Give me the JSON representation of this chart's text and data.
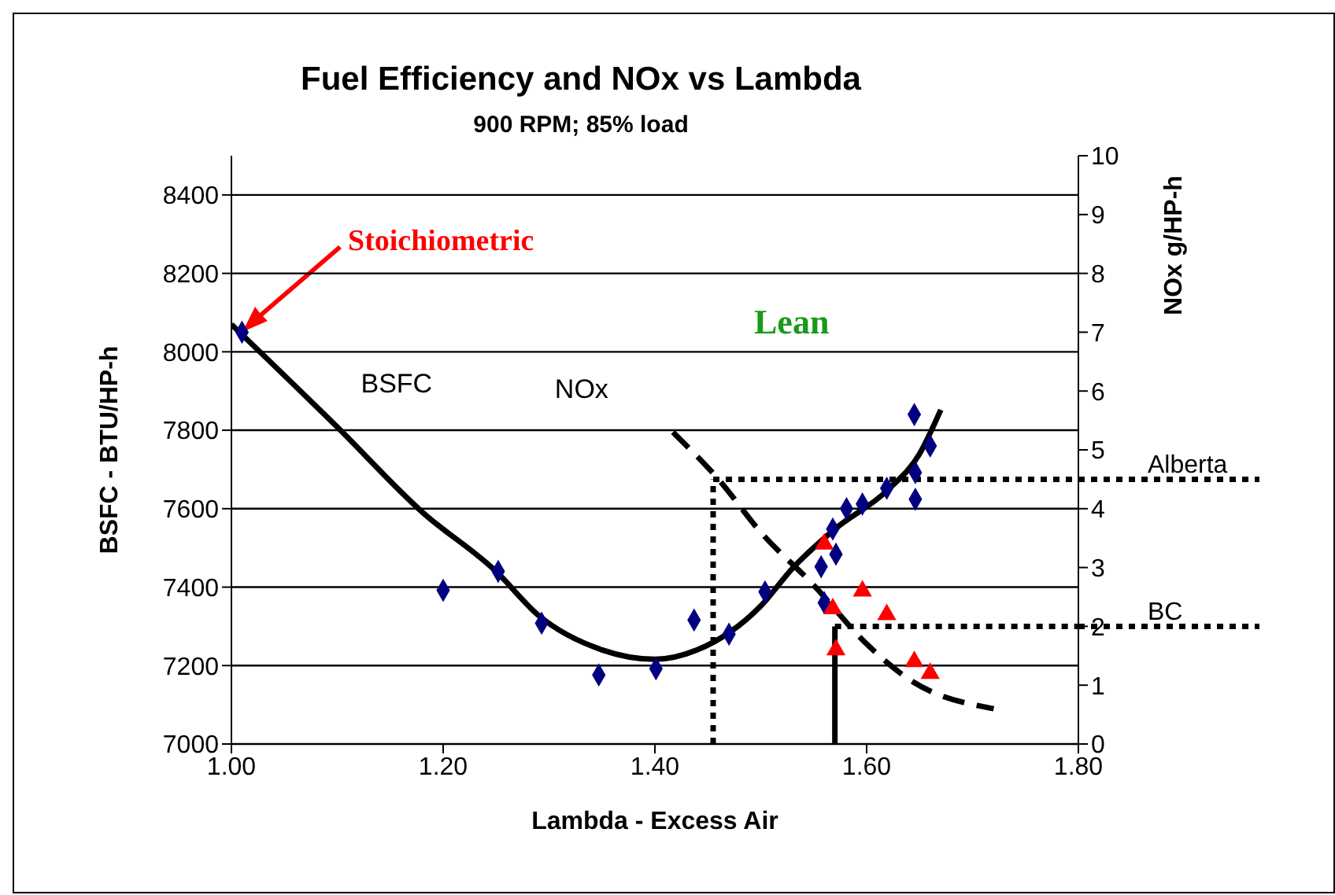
{
  "chart_data": {
    "type": "scatter",
    "title": "Fuel Efficiency and NOx vs Lambda",
    "subtitle": "900 RPM; 85% load",
    "xlabel": "Lambda - Excess Air",
    "ylabel": "BSFC - BTU/HP-h",
    "y2label": "NOx g/HP-h",
    "xlim": [
      1.0,
      1.8
    ],
    "xticks": [
      {
        "value": 1.0,
        "label": "1.00"
      },
      {
        "value": 1.2,
        "label": "1.20"
      },
      {
        "value": 1.4,
        "label": "1.40"
      },
      {
        "value": 1.6,
        "label": "1.60"
      },
      {
        "value": 1.8,
        "label": "1.80"
      }
    ],
    "ylim": [
      7000,
      8500
    ],
    "yticks": [
      7000,
      7200,
      7400,
      7600,
      7800,
      8000,
      8200,
      8400
    ],
    "y2lim": [
      0,
      10
    ],
    "y2ticks": [
      0,
      1,
      2,
      3,
      4,
      5,
      6,
      7,
      8,
      9,
      10
    ],
    "grid": "y",
    "legend": false,
    "series": [
      {
        "type": "scatter",
        "marker": "diamond",
        "color": "#000080",
        "x": [
          1.01,
          1.2,
          1.252,
          1.293,
          1.347,
          1.401,
          1.437,
          1.47,
          1.504,
          1.557,
          1.56,
          1.571,
          1.568,
          1.581,
          1.596,
          1.619,
          1.645,
          1.66,
          1.646,
          1.646
        ],
        "values": [
          8050,
          7392,
          7440,
          7308,
          7176,
          7192,
          7316,
          7280,
          7388,
          7452,
          7360,
          7484,
          7548,
          7600,
          7612,
          7652,
          7840,
          7760,
          7692,
          7624
        ]
      },
      {
        "type": "scatter",
        "marker": "triangle",
        "color": "#ff0000",
        "axis": "y2",
        "x": [
          1.56,
          1.568,
          1.571,
          1.596,
          1.619,
          1.645,
          1.66
        ],
        "values": [
          3.4,
          2.3,
          1.6,
          2.6,
          2.2,
          1.4,
          1.2
        ]
      },
      {
        "type": "line",
        "name": "BSFC",
        "color": "#000000",
        "line_style": "solid",
        "x": [
          1.0,
          1.1,
          1.18,
          1.25,
          1.29,
          1.35,
          1.4,
          1.44,
          1.5,
          1.53,
          1.57,
          1.62,
          1.65,
          1.67
        ],
        "values": [
          8070,
          7808,
          7592,
          7440,
          7328,
          7240,
          7216,
          7240,
          7352,
          7448,
          7548,
          7648,
          7740,
          7852
        ]
      },
      {
        "type": "line",
        "name": "NOx",
        "color": "#000000",
        "line_style": "dashed",
        "axis": "y2",
        "x": [
          1.417,
          1.46,
          1.5,
          1.55,
          1.6,
          1.64,
          1.72
        ],
        "values": [
          5.3,
          4.5,
          3.6,
          2.7,
          1.7,
          1.1,
          0.6
        ]
      }
    ],
    "ref_lines": [
      {
        "axis": "x",
        "value": 1.455,
        "line_style": "dotted",
        "color": "#000000"
      },
      {
        "axis": "x",
        "value": 1.57,
        "line_style": "solid",
        "color": "#000000"
      },
      {
        "axis": "y2",
        "value": 4.5,
        "label": "Alberta",
        "line_style": "dotted",
        "color": "#000000"
      },
      {
        "axis": "y2",
        "value": 2,
        "label": "BC",
        "line_style": "dotted",
        "color": "#000000"
      }
    ],
    "annotations": [
      "Stoichiometric",
      "Lean"
    ]
  }
}
